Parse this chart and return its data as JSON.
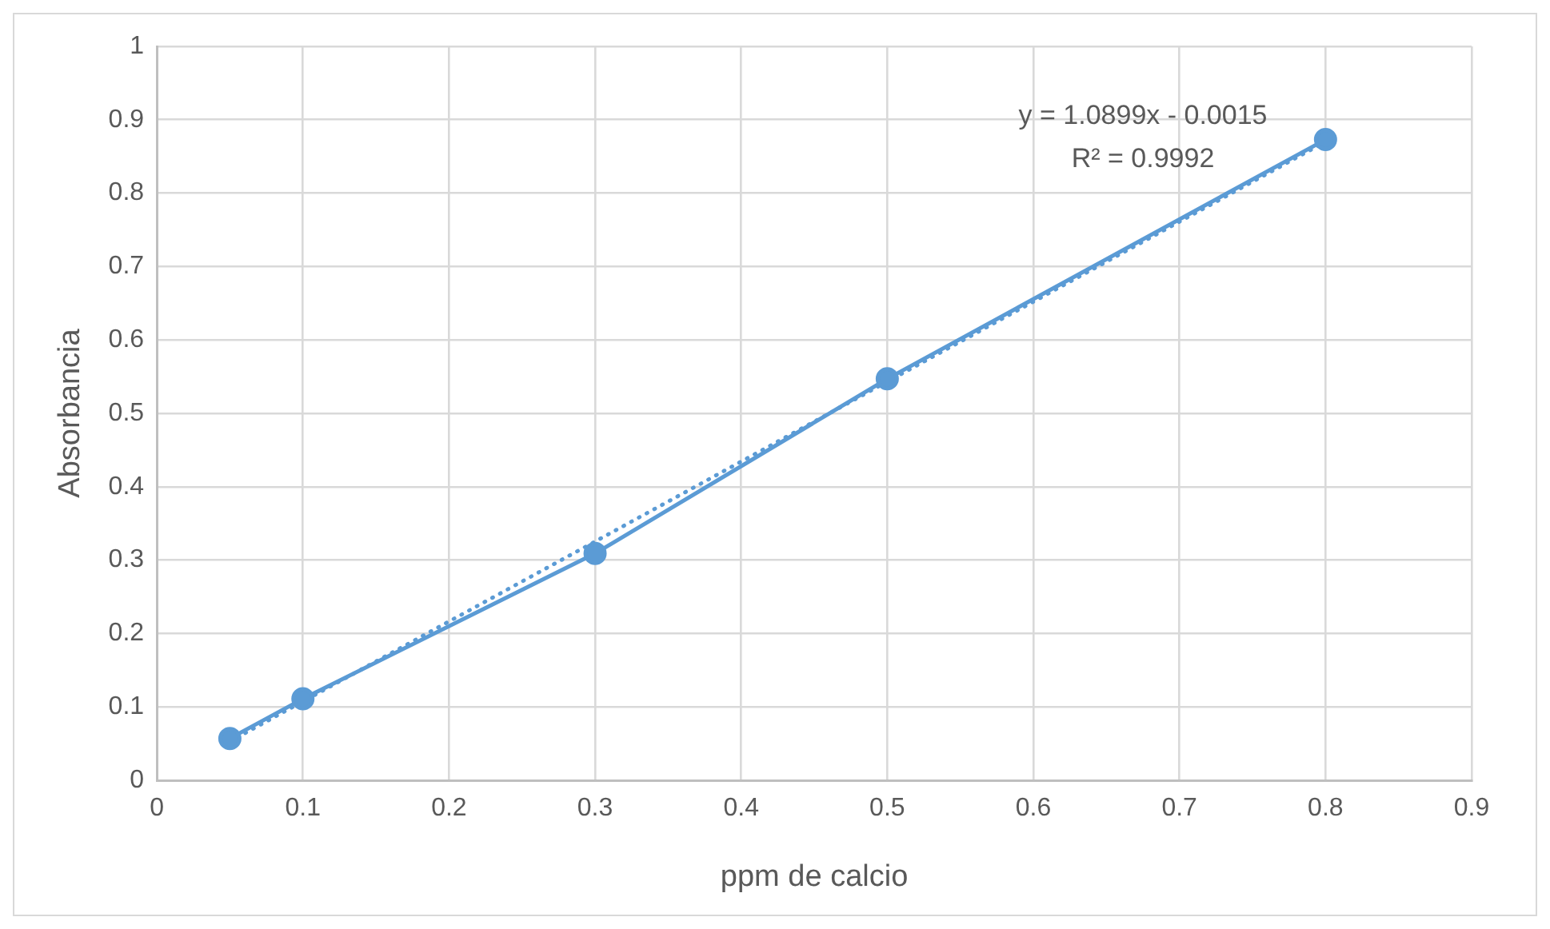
{
  "chart_data": {
    "type": "line",
    "xlabel": "ppm de calcio",
    "ylabel": "Absorbancia",
    "xlim": [
      0,
      0.9
    ],
    "xticks": [
      0,
      0.1,
      0.2,
      0.3,
      0.4,
      0.5,
      0.6,
      0.7,
      0.8,
      0.9
    ],
    "ylim": [
      0,
      1
    ],
    "yticks": [
      0,
      0.1,
      0.2,
      0.3,
      0.4,
      0.5,
      0.6,
      0.7,
      0.8,
      0.9,
      1
    ],
    "grid": true,
    "legend": false,
    "series": [
      {
        "color": "#5b9bd5",
        "x": [
          0.05,
          0.1,
          0.3,
          0.5,
          0.8
        ],
        "values": [
          0.057,
          0.111,
          0.309,
          0.547,
          0.873
        ],
        "marker": "circle",
        "line_style": "solid"
      },
      {
        "color": "#5b9bd5",
        "x": [
          0.05,
          0.8
        ],
        "values": [
          0.053,
          0.87
        ],
        "marker": "none",
        "line_style": "dotted"
      }
    ],
    "annotations": [
      "y = 1.0899x - 0.0015",
      "R² = 0.9992"
    ]
  }
}
